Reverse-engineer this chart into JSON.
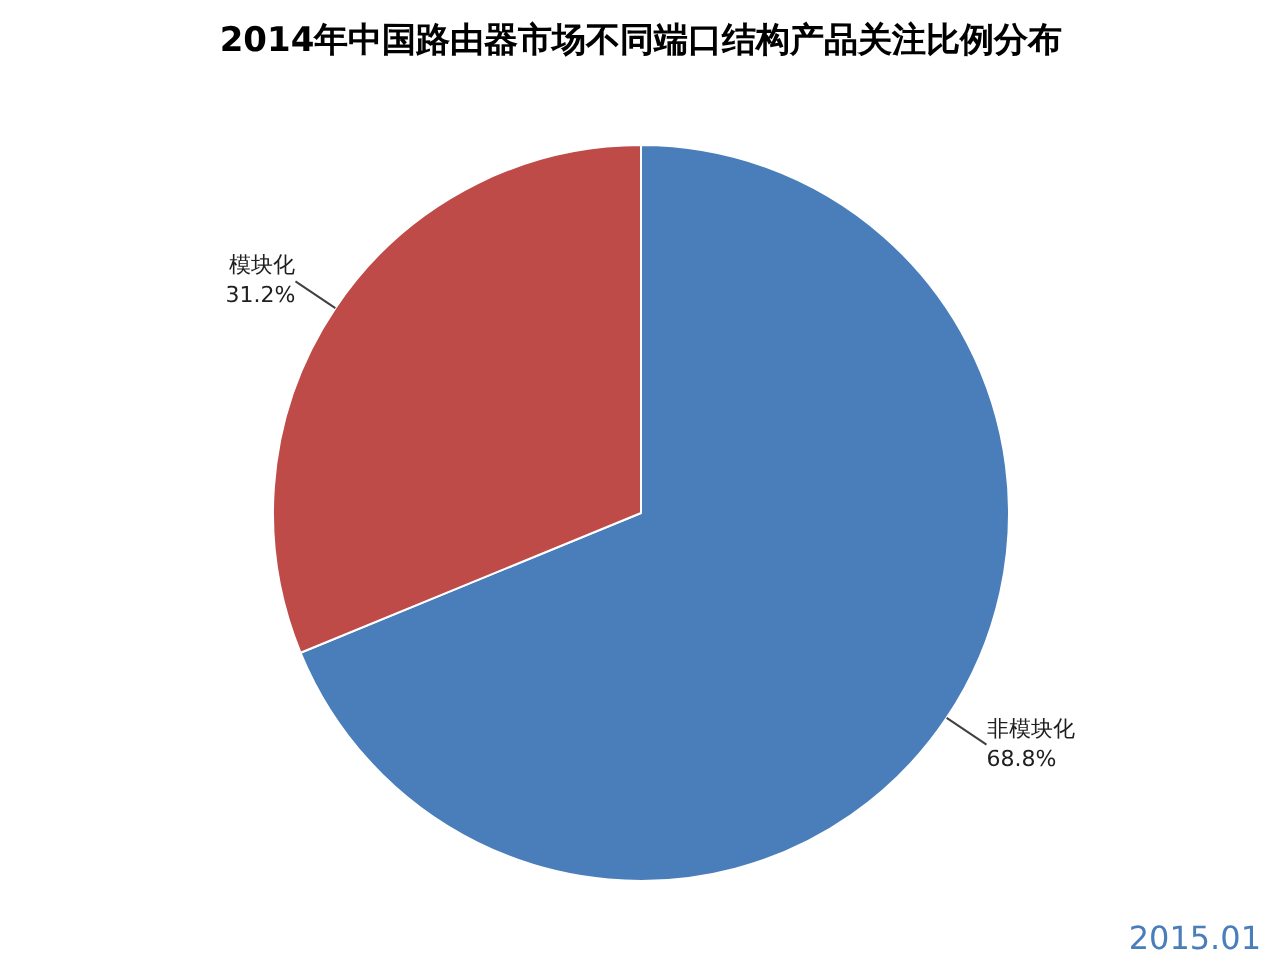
{
  "chart_data": {
    "type": "pie",
    "title": "2014年中国路由器市场不同端口结构产品关注比例分布",
    "categories": [
      "非模块化",
      "模块化"
    ],
    "values": [
      68.8,
      31.2
    ],
    "colors": [
      "#4a7ebb",
      "#be4b48"
    ],
    "value_labels": [
      "68.8%",
      "31.2%"
    ],
    "annotations": [
      "2015.01"
    ]
  }
}
